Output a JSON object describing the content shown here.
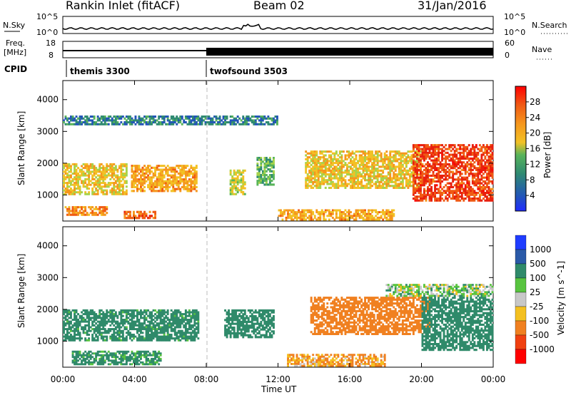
{
  "header": {
    "station": "Rankin Inlet (fitACF)",
    "beam": "Beam 02",
    "date": "31/Jan/2016"
  },
  "status_panels": {
    "nsky_label": "N.Sky",
    "nsky_ticks": [
      "10^5",
      "10^0"
    ],
    "nsearch_label": "N.Search",
    "nsearch_ticks": [
      "10^5",
      "10^0"
    ],
    "freq_label": "Freq.",
    "freq_unit": "[MHz]",
    "freq_ticks": [
      "18",
      "8"
    ],
    "nave_label": "Nave",
    "nave_ticks": [
      "60",
      "0"
    ],
    "cpid_label": "CPID",
    "cpid_modes": [
      {
        "name": "themis 3300",
        "start_hour": 0.2
      },
      {
        "name": "twofsound 3503",
        "start_hour": 8.0
      }
    ]
  },
  "chart_data": [
    {
      "type": "heatmap",
      "panel": "power",
      "ylabel": "Slant Range [km]",
      "xlabel": "",
      "x_unit": "hours UT",
      "xlim": [
        0,
        24
      ],
      "ylim": [
        180,
        4600
      ],
      "yticks": [
        1000,
        2000,
        3000,
        4000
      ],
      "colorbar": {
        "label": "Power [dB]",
        "range": [
          0,
          32
        ],
        "ticks": [
          4,
          8,
          12,
          16,
          20,
          24,
          28
        ],
        "colors": [
          "#1f2bff",
          "#2255b8",
          "#2f8a72",
          "#58b45a",
          "#a6d34a",
          "#f2c125",
          "#f5961d",
          "#f05a14",
          "#e8200e",
          "#ff0000"
        ]
      },
      "regions": [
        {
          "t0": 0.0,
          "t1": 3.6,
          "r0": 1000,
          "r1": 2000,
          "value": 16
        },
        {
          "t0": 3.8,
          "t1": 7.5,
          "r0": 1100,
          "r1": 1950,
          "value": 18
        },
        {
          "t0": 0.1,
          "t1": 2.5,
          "r0": 350,
          "r1": 650,
          "value": 20
        },
        {
          "t0": 3.4,
          "t1": 5.2,
          "r0": 250,
          "r1": 500,
          "value": 22
        },
        {
          "t0": 9.3,
          "t1": 10.2,
          "r0": 1000,
          "r1": 1800,
          "value": 14
        },
        {
          "t0": 10.8,
          "t1": 11.8,
          "r0": 1300,
          "r1": 2200,
          "value": 10
        },
        {
          "t0": 12.0,
          "t1": 18.5,
          "r0": 200,
          "r1": 550,
          "value": 18
        },
        {
          "t0": 13.5,
          "t1": 20.0,
          "r0": 1200,
          "r1": 2400,
          "value": 16
        },
        {
          "t0": 19.5,
          "t1": 24.0,
          "r0": 800,
          "r1": 2600,
          "value": 24
        },
        {
          "t0": 0.0,
          "t1": 12.0,
          "r0": 3200,
          "r1": 3500,
          "value": 6
        }
      ]
    },
    {
      "type": "heatmap",
      "panel": "velocity",
      "ylabel": "Slant Range [km]",
      "xlabel": "Time UT",
      "xlim": [
        0,
        24
      ],
      "ylim": [
        180,
        4600
      ],
      "yticks": [
        1000,
        2000,
        3000,
        4000
      ],
      "xticks": [
        "00:00",
        "04:00",
        "08:00",
        "12:00",
        "16:00",
        "20:00",
        "00:00"
      ],
      "colorbar": {
        "label": "Velocity [m s^-1]",
        "tick_labels": [
          "1000",
          "500",
          "100",
          "25",
          "-25",
          "-100",
          "-500",
          "-1000"
        ],
        "colors": [
          "#1f3cff",
          "#2a5aa8",
          "#2f8a6a",
          "#58c43f",
          "#c8c8c8",
          "#f4c020",
          "#f08020",
          "#f04010",
          "#ff0000"
        ]
      },
      "regions": [
        {
          "t0": 0.0,
          "t1": 7.6,
          "r0": 1000,
          "r1": 2000,
          "value": 150
        },
        {
          "t0": 0.5,
          "t1": 5.5,
          "r0": 250,
          "r1": 700,
          "value": 120
        },
        {
          "t0": 9.0,
          "t1": 11.8,
          "r0": 1100,
          "r1": 2000,
          "value": 200
        },
        {
          "t0": 12.5,
          "t1": 18.0,
          "r0": 200,
          "r1": 600,
          "value": -150
        },
        {
          "t0": 13.8,
          "t1": 20.5,
          "r0": 1200,
          "r1": 2400,
          "value": -400
        },
        {
          "t0": 20.0,
          "t1": 24.0,
          "r0": 700,
          "r1": 2400,
          "value": 300
        },
        {
          "t0": 18.0,
          "t1": 24.0,
          "r0": 2400,
          "r1": 2800,
          "value": 0
        }
      ]
    }
  ]
}
